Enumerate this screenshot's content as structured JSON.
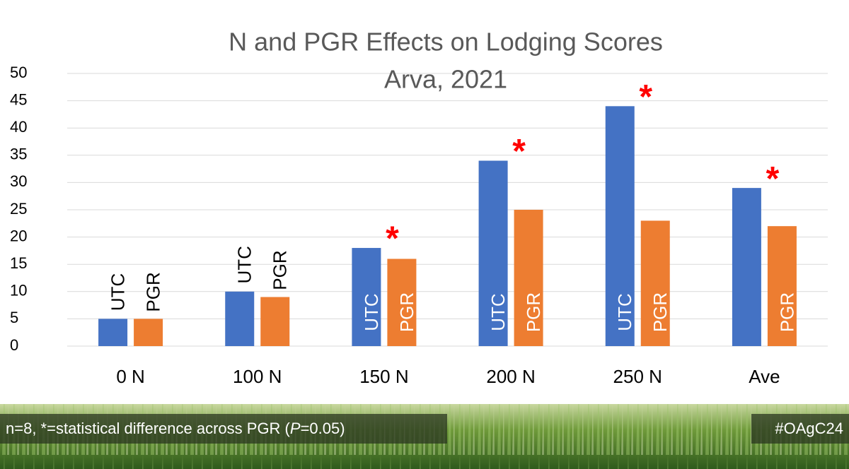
{
  "chart_data": {
    "type": "bar",
    "title": "N and PGR Effects on Lodging Scores",
    "subtitle": "Arva, 2021",
    "categories": [
      "0 N",
      "100 N",
      "150 N",
      "200 N",
      "250 N",
      "Ave"
    ],
    "series": [
      {
        "name": "UTC",
        "color": "#4472c4",
        "values": [
          5,
          10,
          18,
          34,
          44,
          29
        ]
      },
      {
        "name": "PGR",
        "color": "#ed7d31",
        "values": [
          5,
          9,
          16,
          25,
          23,
          22
        ]
      }
    ],
    "significance_marks": [
      null,
      null,
      "*",
      "*",
      "*",
      "*"
    ],
    "ylim": [
      0,
      50
    ],
    "yticks": [
      0,
      5,
      10,
      15,
      20,
      25,
      30,
      35,
      40,
      45,
      50
    ],
    "grid": true
  },
  "footer": {
    "note_before": "n=8, *=statistical difference across PGR (",
    "note_italic": "P",
    "note_after": "=0.05)",
    "hashtag": "#OAgC24"
  }
}
